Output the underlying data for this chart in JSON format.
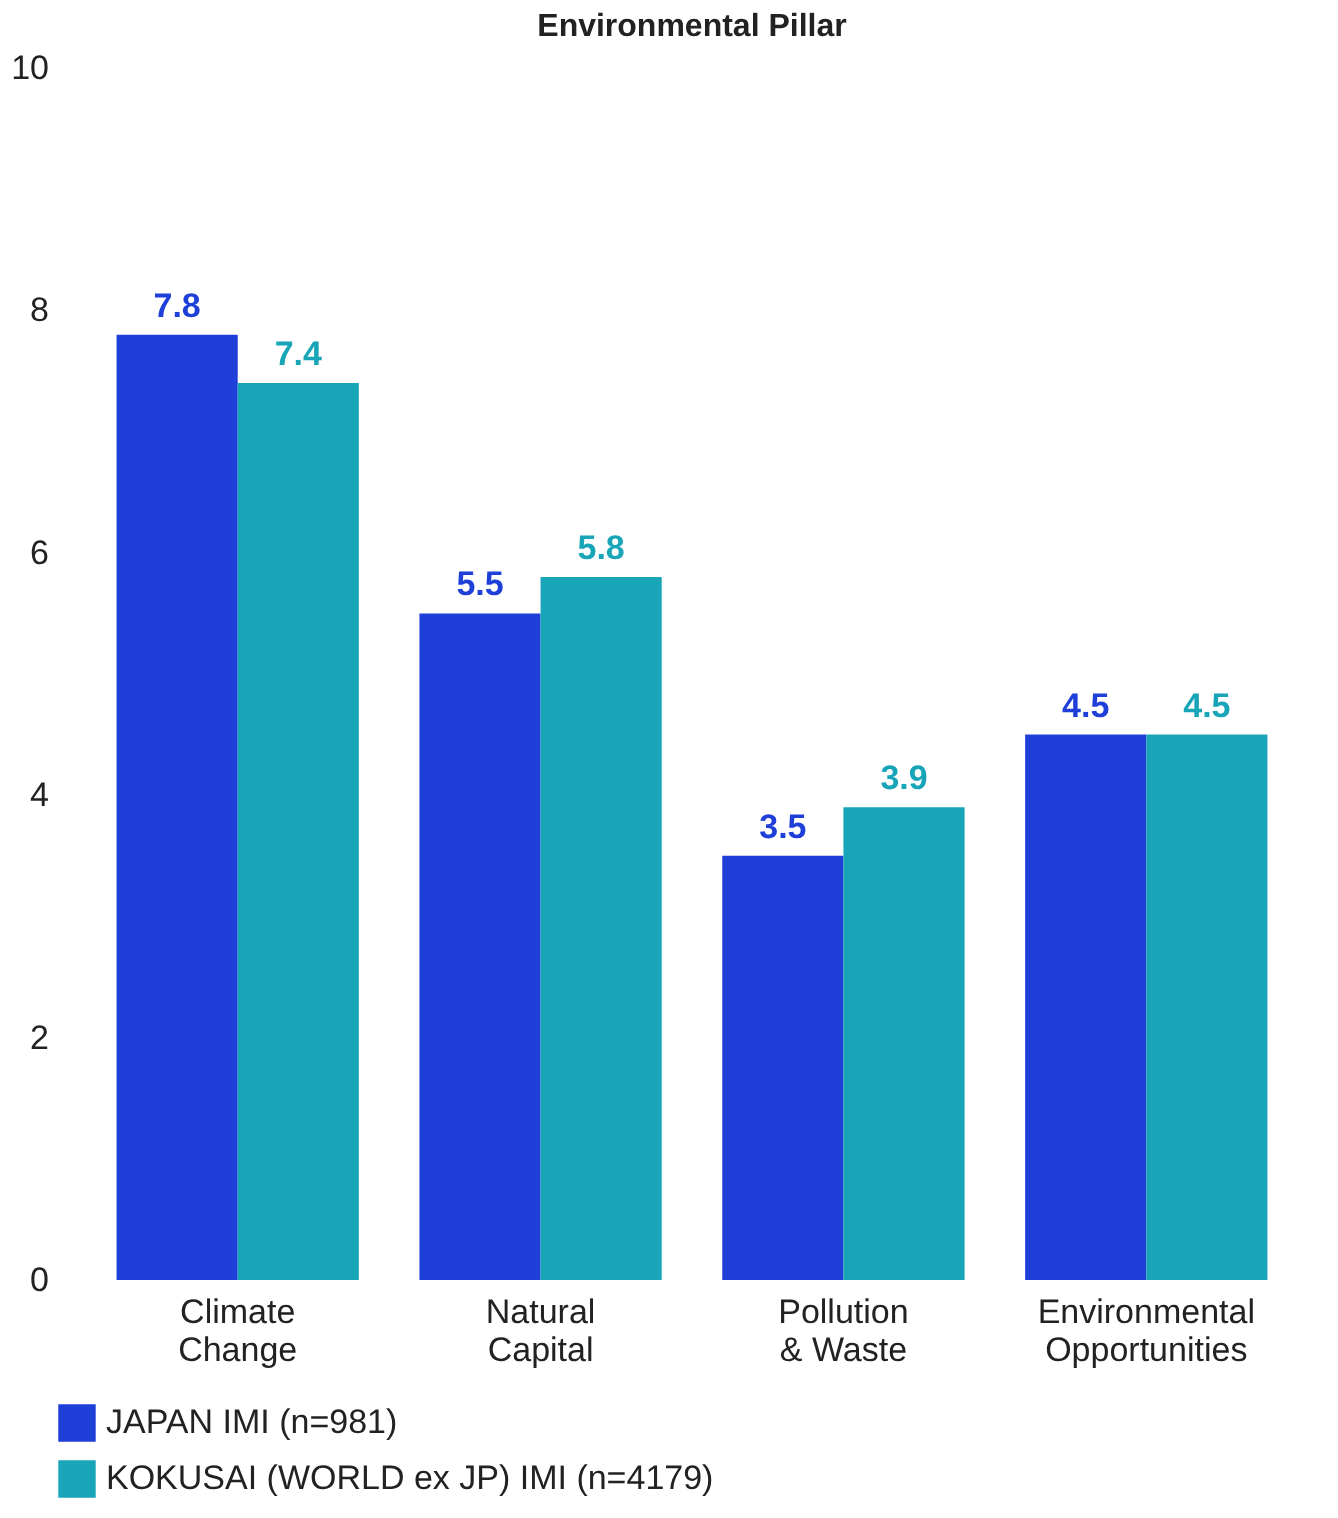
{
  "chart_data": {
    "type": "bar",
    "title": "Environmental Pillar",
    "categories": [
      "Climate Change",
      "Natural Capital",
      "Pollution & Waste",
      "Environmental Opportunities"
    ],
    "series": [
      {
        "name": "JAPAN IMI (n=981)",
        "color": "#1f3fd9",
        "values": [
          7.8,
          5.5,
          3.5,
          4.5
        ]
      },
      {
        "name": "KOKUSAI (WORLD ex JP) IMI (n=4179)",
        "color": "#19a5b8",
        "values": [
          7.4,
          5.8,
          3.9,
          4.5
        ]
      }
    ],
    "ylim": [
      0,
      10
    ],
    "yticks": [
      0,
      2,
      4,
      6,
      8,
      10
    ],
    "grid": false,
    "legend": "bottom",
    "data_labels": true
  }
}
